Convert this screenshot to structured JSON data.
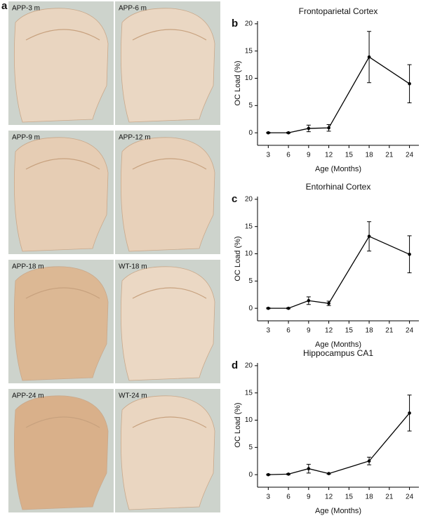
{
  "images": {
    "panel_label": "a",
    "items": [
      "APP-3 m",
      "APP-6 m",
      "APP-9 m",
      "APP-12 m",
      "APP-18 m",
      "WT-18 m",
      "APP-24 m",
      "WT-24 m"
    ]
  },
  "chart_data": [
    {
      "type": "line",
      "panel_label": "b",
      "title": "Frontoparietal Cortex",
      "xlabel": "Age (Months)",
      "ylabel": "OC Load (%)",
      "x": [
        3,
        6,
        9,
        12,
        18,
        24
      ],
      "values": [
        0,
        0,
        0.8,
        0.9,
        13.9,
        9.0
      ],
      "errors": [
        0.1,
        0.1,
        0.6,
        0.6,
        4.7,
        3.5
      ],
      "xlim": [
        1.4,
        25.4
      ],
      "ylim": [
        -2.3,
        20.5
      ],
      "xticks": [
        3,
        6,
        9,
        12,
        15,
        18,
        21,
        24
      ],
      "yticks": [
        0,
        5,
        10,
        15,
        20
      ],
      "color": "#000000"
    },
    {
      "type": "line",
      "panel_label": "c",
      "title": "Entorhinal Cortex",
      "xlabel": "Age (Months)",
      "ylabel": "OC Load (%)",
      "x": [
        3,
        6,
        9,
        12,
        18,
        24
      ],
      "values": [
        0,
        0,
        1.4,
        0.9,
        13.2,
        9.9
      ],
      "errors": [
        0.1,
        0.1,
        0.7,
        0.4,
        2.7,
        3.4
      ],
      "xlim": [
        1.4,
        25.4
      ],
      "ylim": [
        -2.3,
        20.5
      ],
      "xticks": [
        3,
        6,
        9,
        12,
        15,
        18,
        21,
        24
      ],
      "yticks": [
        0,
        5,
        10,
        15,
        20
      ],
      "color": "#000000"
    },
    {
      "type": "line",
      "panel_label": "d",
      "title": "Hippocampus CA1",
      "xlabel": "Age (Months)",
      "ylabel": "OC Load (%)",
      "x": [
        3,
        6,
        9,
        12,
        18,
        24
      ],
      "values": [
        0,
        0.1,
        1.1,
        0.2,
        2.5,
        11.3
      ],
      "errors": [
        0.1,
        0.1,
        0.8,
        0.1,
        0.7,
        3.3
      ],
      "xlim": [
        1.4,
        25.4
      ],
      "ylim": [
        -2.3,
        20.5
      ],
      "xticks": [
        3,
        6,
        9,
        12,
        15,
        18,
        21,
        24
      ],
      "yticks": [
        0,
        5,
        10,
        15,
        20
      ],
      "color": "#000000"
    }
  ]
}
